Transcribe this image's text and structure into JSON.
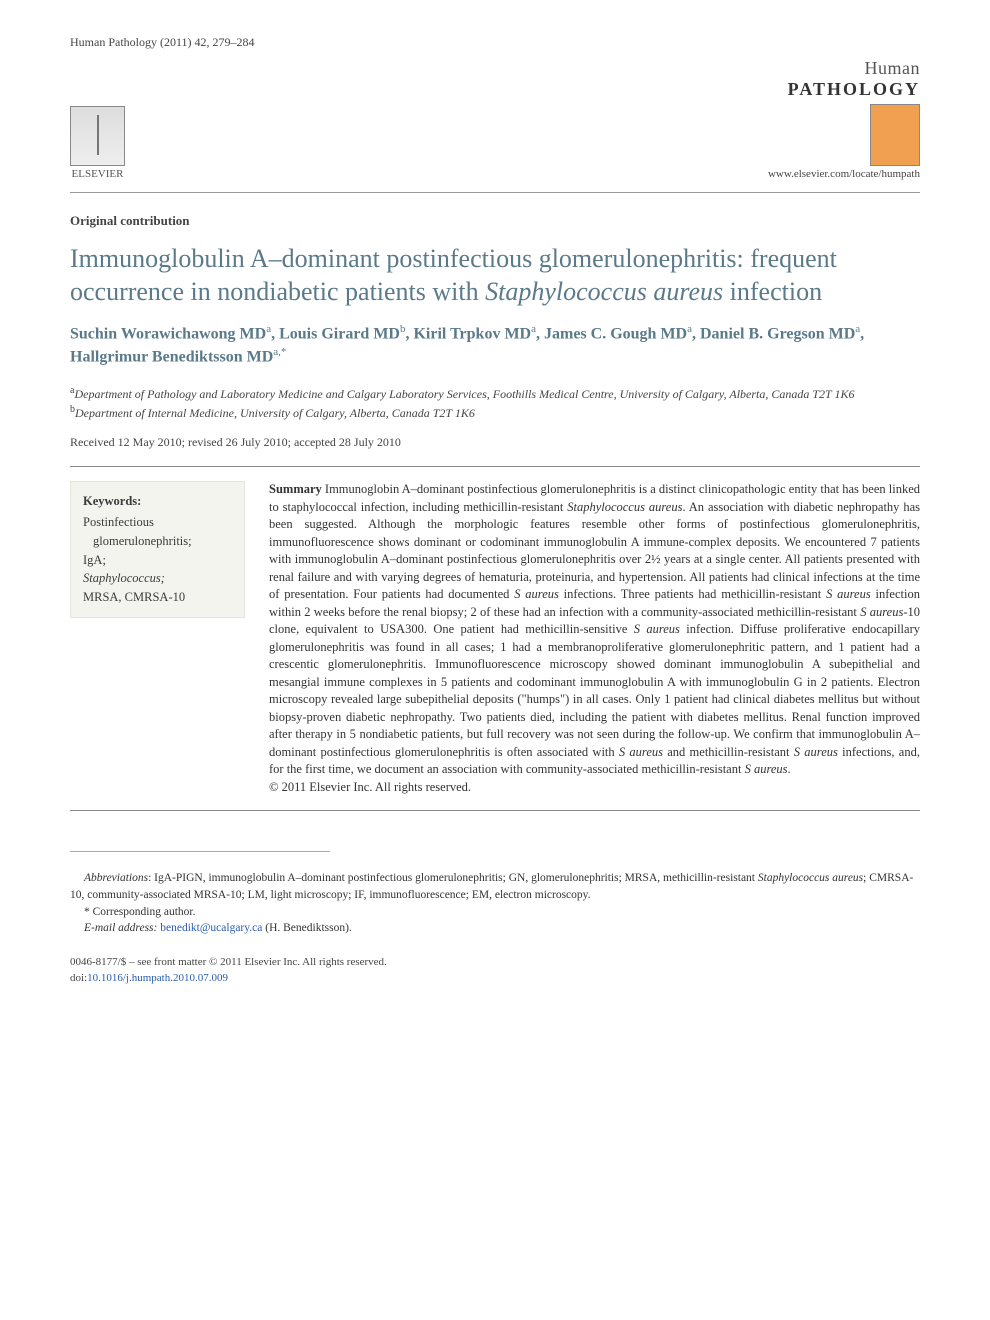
{
  "header": {
    "journal_ref": "Human Pathology (2011) 42, 279–284",
    "publisher_name": "ELSEVIER",
    "journal_brand_line1": "Human",
    "journal_brand_line2": "PATHOLOGY",
    "journal_url": "www.elsevier.com/locate/humpath"
  },
  "article": {
    "type_label": "Original contribution",
    "title_plain": "Immunoglobulin A–dominant postinfectious glomerulonephritis: frequent occurrence in nondiabetic patients with ",
    "title_italic": "Staphylococcus aureus",
    "title_tail": " infection",
    "authors_html": "Suchin Worawichawong MD<sup>a</sup>, Louis Girard  MD<sup>b</sup>, Kiril Trpkov MD<sup>a</sup>, James C. Gough MD<sup>a</sup>, Daniel B. Gregson MD<sup>a</sup>, Hallgrimur Benediktsson MD<sup>a,*</sup>",
    "affiliations": [
      {
        "sup": "a",
        "text": "Department of Pathology and Laboratory Medicine and Calgary Laboratory Services, Foothills Medical Centre, University of Calgary, Alberta, Canada T2T 1K6"
      },
      {
        "sup": "b",
        "text": "Department of Internal Medicine, University of Calgary, Alberta, Canada T2T 1K6"
      }
    ],
    "dates": "Received 12 May 2010; revised 26 July 2010; accepted 28 July 2010"
  },
  "keywords": {
    "heading": "Keywords:",
    "items": [
      {
        "text": "Postinfectious glomerulonephritis;",
        "italic": false
      },
      {
        "text": "IgA;",
        "italic": false
      },
      {
        "text": "Staphylococcus;",
        "italic": true
      },
      {
        "text": "MRSA, CMRSA-10",
        "italic": false
      }
    ]
  },
  "summary": {
    "heading": "Summary",
    "body": " Immunoglobin A–dominant postinfectious glomerulonephritis is a distinct clinicopathologic entity that has been linked to staphylococcal infection, including methicillin-resistant <i>Staphylococcus aureus</i>. An association with diabetic nephropathy has been suggested. Although the morphologic features resemble other forms of postinfectious glomerulonephritis, immunofluorescence shows dominant or codominant immunoglobulin A immune-complex deposits. We encountered 7 patients with immunoglobulin A–dominant postinfectious glomerulonephritis over 2½ years at a single center. All patients presented with renal failure and with varying degrees of hematuria, proteinuria, and hypertension. All patients had clinical infections at the time of presentation. Four patients had documented <i>S aureus</i> infections. Three patients had methicillin-resistant <i>S aureus</i> infection within 2 weeks before the renal biopsy; 2 of these had an infection with a community-associated methicillin-resistant <i>S aureus</i>-10 clone, equivalent to USA300. One patient had methicillin-sensitive <i>S aureus</i> infection. Diffuse proliferative endocapillary glomerulonephritis was found in all cases; 1 had a membranoproliferative glomerulonephritic pattern, and 1 patient had a crescentic glomerulonephritis. Immunofluorescence microscopy showed dominant immunoglobulin A subepithelial and mesangial immune complexes in 5 patients and codominant immunoglobulin A with immunoglobulin G in 2 patients. Electron microscopy revealed large subepithelial deposits (\"humps\") in all cases. Only 1 patient had clinical diabetes mellitus but without biopsy-proven diabetic nephropathy. Two patients died, including the patient with diabetes mellitus. Renal function improved after therapy in 5 nondiabetic patients, but full recovery was not seen during the follow-up. We confirm that immunoglobulin A–dominant postinfectious glomerulonephritis is often associated with <i>S aureus</i> and methicillin-resistant <i>S aureus</i> infections, and, for the first time, we document an association with community-associated methicillin-resistant <i>S aureus</i>.",
    "copyright": "© 2011 Elsevier Inc. All rights reserved."
  },
  "footnotes": {
    "abbreviations_label": "Abbreviations",
    "abbreviations_text": ": IgA-PIGN, immunoglobulin A–dominant postinfectious glomerulonephritis; GN, glomerulonephritis; MRSA, methicillin-resistant <i>Staphylococcus aureus</i>; CMRSA-10, community-associated MRSA-10; LM, light microscopy; IF, immunofluorescence; EM, electron microscopy.",
    "corresponding": "* Corresponding author.",
    "email_label": "E-mail address:",
    "email": "benedikt@ucalgary.ca",
    "email_name": "(H. Benediktsson)."
  },
  "footer": {
    "issn_line": "0046-8177/$ – see front matter © 2011 Elsevier Inc. All rights reserved.",
    "doi_label": "doi:",
    "doi": "10.1016/j.humpath.2010.07.009"
  },
  "colors": {
    "title_color": "#5a7a8a",
    "text_color": "#3a3a3a",
    "keyword_bg": "#f4f4ef",
    "link_color": "#2a5db0",
    "divider_color": "#888888"
  },
  "typography": {
    "title_fontsize": 26,
    "authors_fontsize": 16,
    "body_fontsize": 12.5,
    "footnote_fontsize": 11.5
  }
}
